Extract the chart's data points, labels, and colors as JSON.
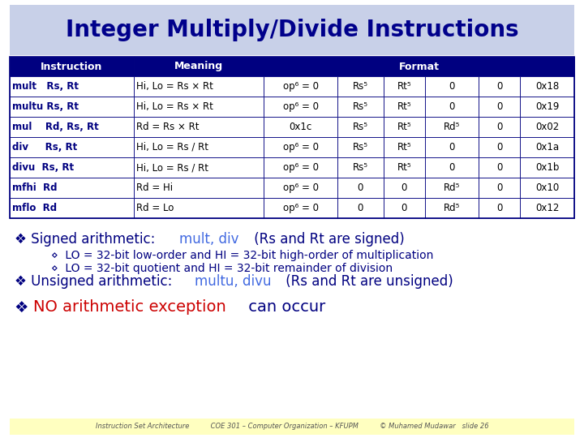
{
  "title": "Integer Multiply/Divide Instructions",
  "title_color": "#00008B",
  "title_bg": "#C8D0E8",
  "slide_bg": "#FFFFFF",
  "header_bg": "#000080",
  "header_fg": "#FFFFFF",
  "rows": [
    {
      "instr": "mult   Rs, Rt",
      "meaning": "Hi, Lo = Rs × Rt",
      "fmt": [
        "op⁶ = 0",
        "Rs⁵",
        "Rt⁵",
        "0",
        "0",
        "0x18"
      ]
    },
    {
      "instr": "multu Rs, Rt",
      "meaning": "Hi, Lo = Rs × Rt",
      "fmt": [
        "op⁶ = 0",
        "Rs⁵",
        "Rt⁵",
        "0",
        "0",
        "0x19"
      ]
    },
    {
      "instr": "mul    Rd, Rs, Rt",
      "meaning": "Rd = Rs × Rt",
      "fmt": [
        "0x1c",
        "Rs⁵",
        "Rt⁵",
        "Rd⁵",
        "0",
        "0x02"
      ]
    },
    {
      "instr": "div     Rs, Rt",
      "meaning": "Hi, Lo = Rs / Rt",
      "fmt": [
        "op⁶ = 0",
        "Rs⁵",
        "Rt⁵",
        "0",
        "0",
        "0x1a"
      ]
    },
    {
      "instr": "divu  Rs, Rt",
      "meaning": "Hi, Lo = Rs / Rt",
      "fmt": [
        "op⁶ = 0",
        "Rs⁵",
        "Rt⁵",
        "0",
        "0",
        "0x1b"
      ]
    },
    {
      "instr": "mfhi  Rd",
      "meaning": "Rd = Hi",
      "fmt": [
        "op⁶ = 0",
        "0",
        "0",
        "Rd⁵",
        "0",
        "0x10"
      ]
    },
    {
      "instr": "mflo  Rd",
      "meaning": "Rd = Lo",
      "fmt": [
        "op⁶ = 0",
        "0",
        "0",
        "Rd⁵",
        "0",
        "0x12"
      ]
    }
  ],
  "bullet1_parts": [
    [
      "❖ Signed arithmetic: ",
      "#000080",
      false
    ],
    [
      "mult, div",
      "#4169E1",
      false
    ],
    [
      " (Rs and Rt are signed)",
      "#000080",
      false
    ]
  ],
  "bullet1_fontsize": 12,
  "sub1": "⋄  LO = 32-bit low-order and HI = 32-bit high-order of multiplication",
  "sub2": "⋄  LO = 32-bit quotient and HI = 32-bit remainder of division",
  "sub_fontsize": 10,
  "bullet2_parts": [
    [
      "❖ Unsigned arithmetic: ",
      "#000080",
      false
    ],
    [
      "multu, divu",
      "#4169E1",
      false
    ],
    [
      " (Rs and Rt are unsigned)",
      "#000080",
      false
    ]
  ],
  "bullet2_fontsize": 12,
  "bullet3_parts": [
    [
      "❖ ",
      "#000080",
      false
    ],
    [
      "NO arithmetic exception",
      "#CC0000",
      false
    ],
    [
      " can occur",
      "#000080",
      false
    ]
  ],
  "bullet3_fontsize": 14,
  "footer_bg": "#FFFFC0",
  "footer_text": "Instruction Set Architecture          COE 301 – Computer Organization – KFUPM          © Muhamed Mudawar   slide 26",
  "footer_color": "#555555",
  "dark_navy": "#000080",
  "black": "#000000",
  "white": "#FFFFFF"
}
